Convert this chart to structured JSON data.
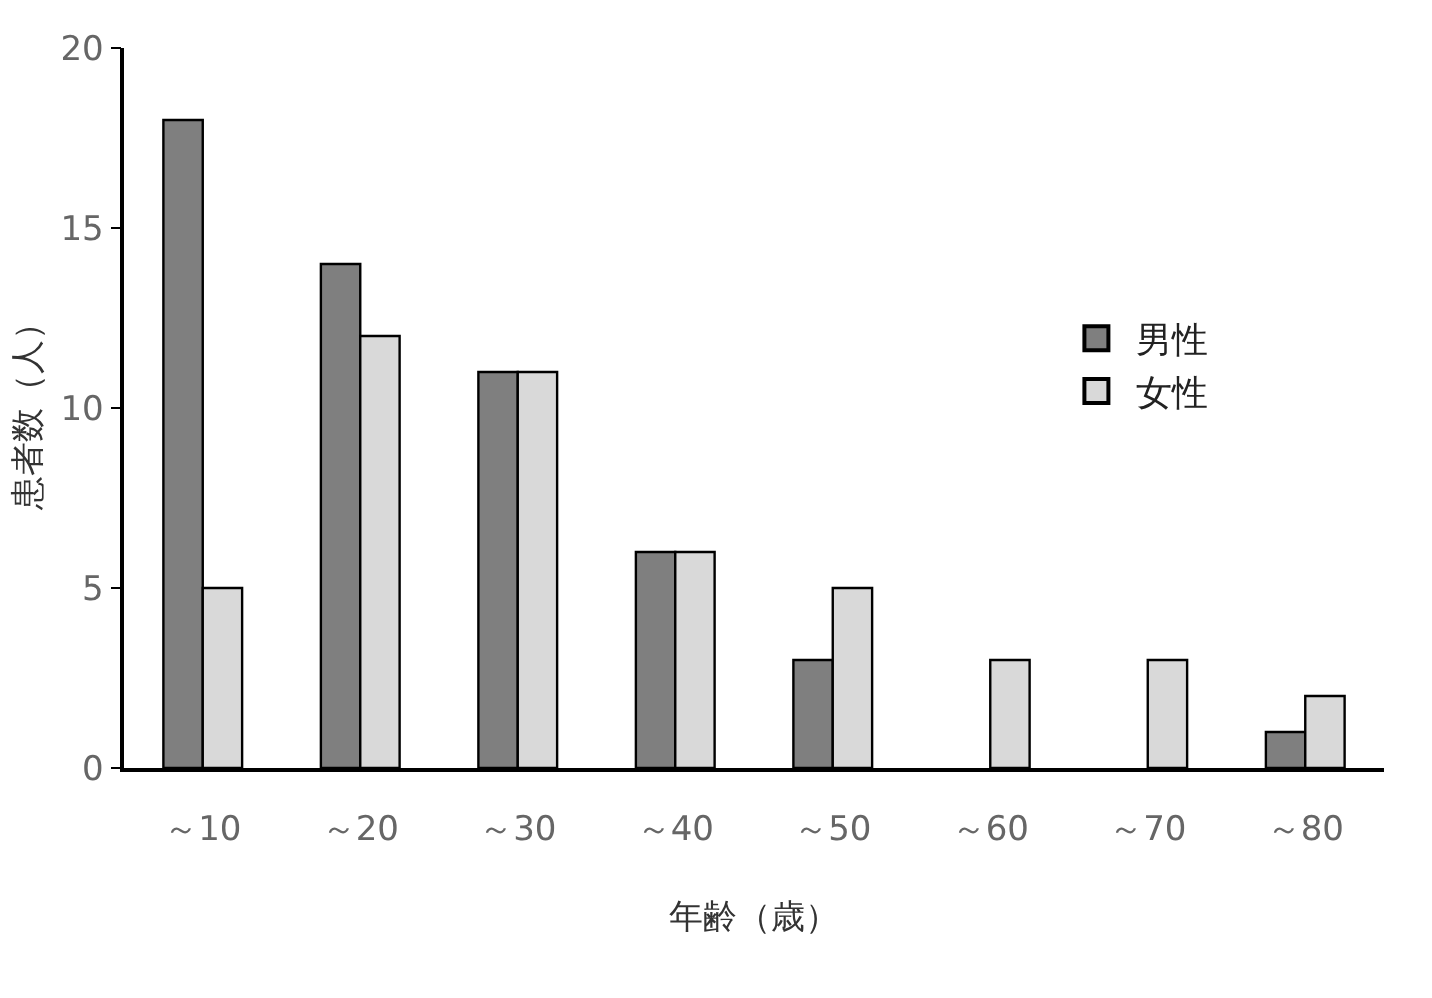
{
  "chart_data": {
    "type": "bar",
    "xlabel": "年齢（歳）",
    "ylabel": "患者数（人）",
    "categories": [
      "～10",
      "～20",
      "～30",
      "～40",
      "～50",
      "～60",
      "～70",
      "～80"
    ],
    "series": [
      {
        "name": "男性",
        "color": "#7f7f7f",
        "values": [
          18,
          14,
          11,
          6,
          3,
          0,
          0,
          1
        ]
      },
      {
        "name": "女性",
        "color": "#d9d9d9",
        "values": [
          5,
          12,
          11,
          6,
          5,
          3,
          3,
          2
        ]
      }
    ],
    "ylim": [
      0,
      20
    ],
    "yticks": [
      0,
      5,
      10,
      15,
      20
    ],
    "grid": false,
    "legend": "right"
  }
}
